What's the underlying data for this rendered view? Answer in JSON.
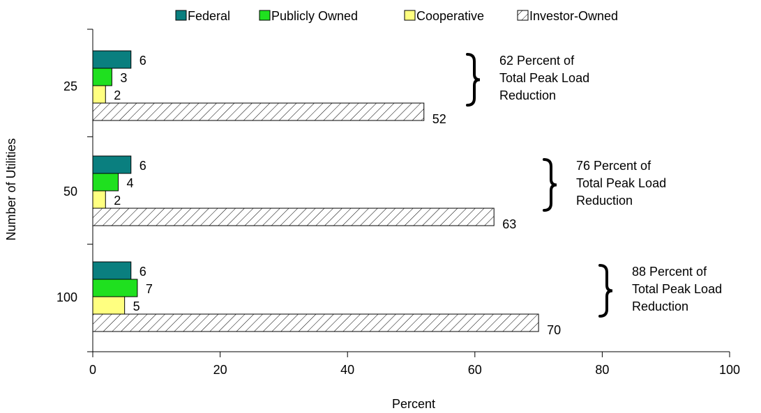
{
  "chart_data": {
    "type": "bar",
    "orientation": "horizontal",
    "title": "",
    "xlabel": "Percent",
    "ylabel": "Number of Utilities",
    "xlim": [
      0,
      100
    ],
    "x_ticks": [
      "0",
      "20",
      "40",
      "60",
      "80",
      "100"
    ],
    "categories": [
      "25",
      "50",
      "100"
    ],
    "series": [
      {
        "name": "Federal",
        "values": [
          6,
          6,
          6
        ],
        "color": "#0a7f7f",
        "pattern": "solid"
      },
      {
        "name": "Publicly Owned",
        "values": [
          3,
          4,
          7
        ],
        "color": "#1fe01f",
        "pattern": "solid"
      },
      {
        "name": "Cooperative",
        "values": [
          2,
          2,
          5
        ],
        "color": "#ffff80",
        "pattern": "solid"
      },
      {
        "name": "Investor-Owned",
        "values": [
          52,
          63,
          70
        ],
        "color": "#ffffff",
        "pattern": "diagonal-hatch"
      }
    ],
    "legend_position": "top",
    "grid": false,
    "annotations": [
      {
        "category": "25",
        "lines": [
          "62 Percent of",
          "Total Peak Load",
          "Reduction"
        ]
      },
      {
        "category": "50",
        "lines": [
          "76 Percent of",
          "Total Peak Load",
          "Reduction"
        ]
      },
      {
        "category": "100",
        "lines": [
          "88 Percent of",
          "Total Peak Load",
          "Reduction"
        ]
      }
    ]
  }
}
